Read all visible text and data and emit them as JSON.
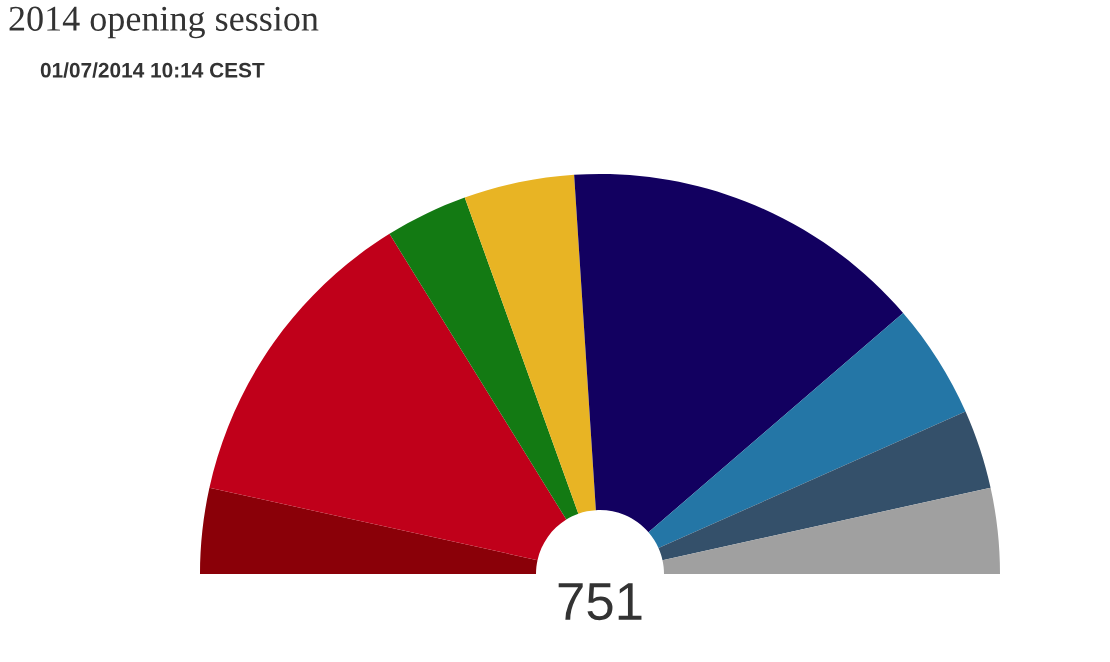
{
  "chart_data": {
    "type": "donut",
    "title": "2014 opening session",
    "subtitle": "01/07/2014 10:14 CEST",
    "categories": [
      null,
      null,
      null,
      null,
      null,
      null,
      null,
      null
    ],
    "values": [
      6.92,
      25.44,
      6.66,
      8.92,
      29.43,
      9.32,
      6.39,
      6.92
    ],
    "colors": [
      "#8a0008",
      "#c0001a",
      "#137a13",
      "#e8b424",
      "#120060",
      "#2476a6",
      "#34506a",
      "#a0a0a0"
    ],
    "annotations": [
      "751"
    ]
  }
}
